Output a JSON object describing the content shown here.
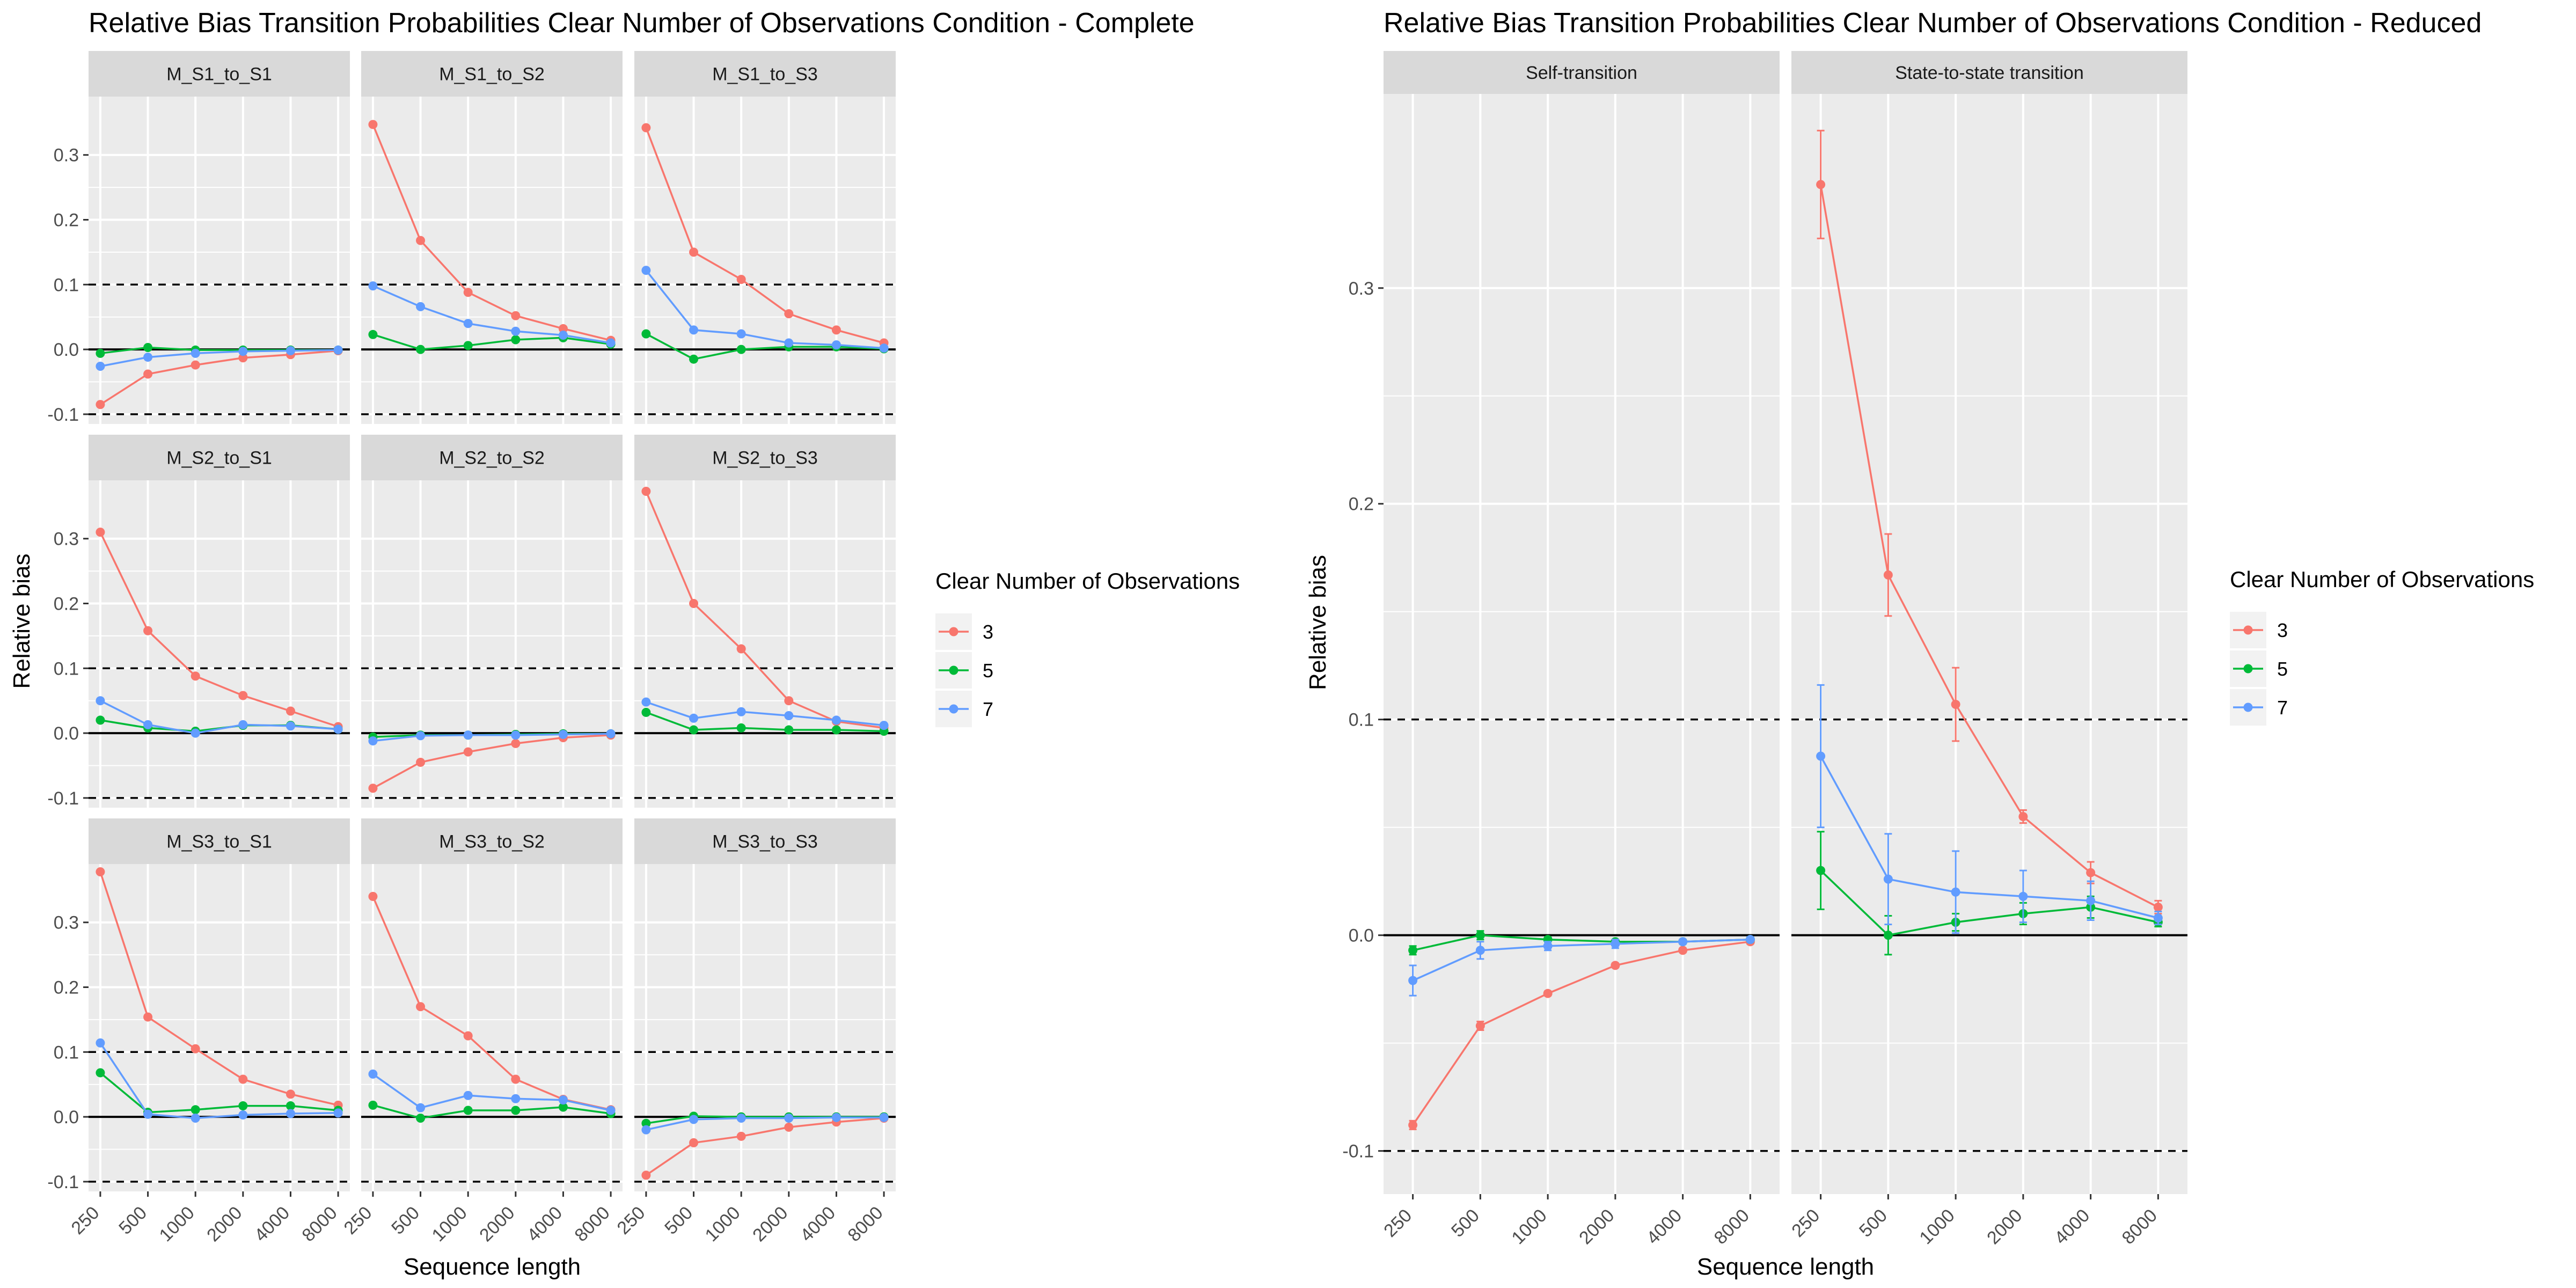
{
  "panel_titles": [
    "Relative Bias Transition Probabilities Clear Number of Observations Condition - Complete",
    "Relative Bias Transition Probabilities Clear Number of Observations Condition - Reduced"
  ],
  "colors": {
    "3": "#F8766D",
    "5": "#00BA38",
    "7": "#619CFF",
    "panel_bg": "#EBEBEB",
    "strip_bg": "#D9D9D9",
    "grid": "#FFFFFF"
  },
  "chart_data": [
    {
      "type": "line",
      "title": "Relative Bias Transition Probabilities Clear Number of Observations Condition - Complete",
      "xlabel": "Sequence length",
      "ylabel": "Relative bias",
      "categories": [
        "250",
        "500",
        "1000",
        "2000",
        "4000",
        "8000"
      ],
      "y_ticks": [
        "-0.1",
        "0.0",
        "0.1",
        "0.2",
        "0.3"
      ],
      "ylim": [
        -0.115,
        0.39
      ],
      "reference_lines": {
        "solid": 0.0,
        "dashed": [
          0.1,
          -0.1
        ]
      },
      "grid": true,
      "legend": {
        "title": "Clear Number of Observations",
        "entries": [
          "3",
          "5",
          "7"
        ],
        "position": "right"
      },
      "facets": [
        {
          "label": "M_S1_to_S1",
          "series": [
            {
              "name": "3",
              "values": [
                -0.085,
                -0.038,
                -0.024,
                -0.013,
                -0.008,
                -0.002
              ]
            },
            {
              "name": "5",
              "values": [
                -0.006,
                0.003,
                -0.001,
                -0.001,
                -0.001,
                -0.001
              ]
            },
            {
              "name": "7",
              "values": [
                -0.026,
                -0.012,
                -0.006,
                -0.003,
                -0.002,
                -0.001
              ]
            }
          ]
        },
        {
          "label": "M_S1_to_S2",
          "series": [
            {
              "name": "3",
              "values": [
                0.347,
                0.168,
                0.088,
                0.052,
                0.032,
                0.014
              ]
            },
            {
              "name": "5",
              "values": [
                0.023,
                0.0,
                0.006,
                0.015,
                0.018,
                0.008
              ]
            },
            {
              "name": "7",
              "values": [
                0.098,
                0.066,
                0.04,
                0.028,
                0.022,
                0.01
              ]
            }
          ]
        },
        {
          "label": "M_S1_to_S3",
          "series": [
            {
              "name": "3",
              "values": [
                0.342,
                0.15,
                0.108,
                0.055,
                0.03,
                0.01
              ]
            },
            {
              "name": "5",
              "values": [
                0.024,
                -0.015,
                0.0,
                0.004,
                0.004,
                0.001
              ]
            },
            {
              "name": "7",
              "values": [
                0.122,
                0.03,
                0.024,
                0.01,
                0.007,
                0.002
              ]
            }
          ]
        },
        {
          "label": "M_S2_to_S1",
          "series": [
            {
              "name": "3",
              "values": [
                0.31,
                0.158,
                0.088,
                0.058,
                0.034,
                0.01
              ]
            },
            {
              "name": "5",
              "values": [
                0.02,
                0.008,
                0.003,
                0.012,
                0.012,
                0.006
              ]
            },
            {
              "name": "7",
              "values": [
                0.05,
                0.013,
                0.0,
                0.013,
                0.011,
                0.006
              ]
            }
          ]
        },
        {
          "label": "M_S2_to_S2",
          "series": [
            {
              "name": "3",
              "values": [
                -0.085,
                -0.045,
                -0.029,
                -0.016,
                -0.007,
                -0.003
              ]
            },
            {
              "name": "5",
              "values": [
                -0.006,
                -0.003,
                -0.003,
                -0.002,
                -0.001,
                -0.001
              ]
            },
            {
              "name": "7",
              "values": [
                -0.012,
                -0.004,
                -0.003,
                -0.003,
                -0.002,
                -0.001
              ]
            }
          ]
        },
        {
          "label": "M_S2_to_S3",
          "series": [
            {
              "name": "3",
              "values": [
                0.373,
                0.2,
                0.13,
                0.05,
                0.018,
                0.008
              ]
            },
            {
              "name": "5",
              "values": [
                0.032,
                0.005,
                0.008,
                0.005,
                0.005,
                0.003
              ]
            },
            {
              "name": "7",
              "values": [
                0.048,
                0.023,
                0.033,
                0.027,
                0.02,
                0.012
              ]
            }
          ]
        },
        {
          "label": "M_S3_to_S1",
          "series": [
            {
              "name": "3",
              "values": [
                0.378,
                0.154,
                0.105,
                0.058,
                0.035,
                0.018
              ]
            },
            {
              "name": "5",
              "values": [
                0.068,
                0.007,
                0.011,
                0.017,
                0.017,
                0.01
              ]
            },
            {
              "name": "7",
              "values": [
                0.114,
                0.004,
                -0.002,
                0.003,
                0.005,
                0.006
              ]
            }
          ]
        },
        {
          "label": "M_S3_to_S2",
          "series": [
            {
              "name": "3",
              "values": [
                0.34,
                0.17,
                0.125,
                0.058,
                0.027,
                0.011
              ]
            },
            {
              "name": "5",
              "values": [
                0.018,
                -0.002,
                0.01,
                0.01,
                0.015,
                0.005
              ]
            },
            {
              "name": "7",
              "values": [
                0.066,
                0.014,
                0.033,
                0.028,
                0.026,
                0.01
              ]
            }
          ]
        },
        {
          "label": "M_S3_to_S3",
          "series": [
            {
              "name": "3",
              "values": [
                -0.09,
                -0.04,
                -0.03,
                -0.016,
                -0.008,
                -0.002
              ]
            },
            {
              "name": "5",
              "values": [
                -0.01,
                0.001,
                0.0,
                0.0,
                0.0,
                0.0
              ]
            },
            {
              "name": "7",
              "values": [
                -0.02,
                -0.004,
                -0.002,
                -0.002,
                -0.001,
                -0.001
              ]
            }
          ]
        }
      ]
    },
    {
      "type": "line",
      "title": "Relative Bias Transition Probabilities Clear Number of Observations Condition - Reduced",
      "xlabel": "Sequence length",
      "ylabel": "Relative bias",
      "categories": [
        "250",
        "500",
        "1000",
        "2000",
        "4000",
        "8000"
      ],
      "y_ticks": [
        "-0.1",
        "0.0",
        "0.1",
        "0.2",
        "0.3"
      ],
      "ylim": [
        -0.12,
        0.39
      ],
      "reference_lines": {
        "solid": 0.0,
        "dashed": [
          0.1,
          -0.1
        ]
      },
      "grid": true,
      "error_bars": true,
      "legend": {
        "title": "Clear Number of Observations",
        "entries": [
          "3",
          "5",
          "7"
        ],
        "position": "right"
      },
      "facets": [
        {
          "label": "Self-transition",
          "series": [
            {
              "name": "3",
              "values": [
                -0.088,
                -0.042,
                -0.027,
                -0.014,
                -0.007,
                -0.003
              ],
              "error": [
                0.002,
                0.002,
                0.001,
                0.001,
                0.001,
                0.001
              ]
            },
            {
              "name": "5",
              "values": [
                -0.007,
                0.0,
                -0.002,
                -0.003,
                -0.003,
                -0.002
              ],
              "error": [
                0.002,
                0.002,
                0.001,
                0.001,
                0.001,
                0.001
              ]
            },
            {
              "name": "7",
              "values": [
                -0.021,
                -0.007,
                -0.005,
                -0.004,
                -0.003,
                -0.002
              ],
              "error": [
                0.007,
                0.004,
                0.002,
                0.002,
                0.001,
                0.001
              ]
            }
          ]
        },
        {
          "label": "State-to-state transition",
          "series": [
            {
              "name": "3",
              "values": [
                0.348,
                0.167,
                0.107,
                0.055,
                0.029,
                0.013
              ],
              "error": [
                0.025,
                0.019,
                0.017,
                0.003,
                0.005,
                0.003
              ]
            },
            {
              "name": "5",
              "values": [
                0.03,
                0.0,
                0.006,
                0.01,
                0.013,
                0.006
              ],
              "error": [
                0.018,
                0.009,
                0.004,
                0.005,
                0.005,
                0.002
              ]
            },
            {
              "name": "7",
              "values": [
                0.083,
                0.026,
                0.02,
                0.018,
                0.016,
                0.008
              ],
              "error": [
                0.033,
                0.021,
                0.019,
                0.012,
                0.009,
                0.003
              ]
            }
          ]
        }
      ]
    }
  ]
}
